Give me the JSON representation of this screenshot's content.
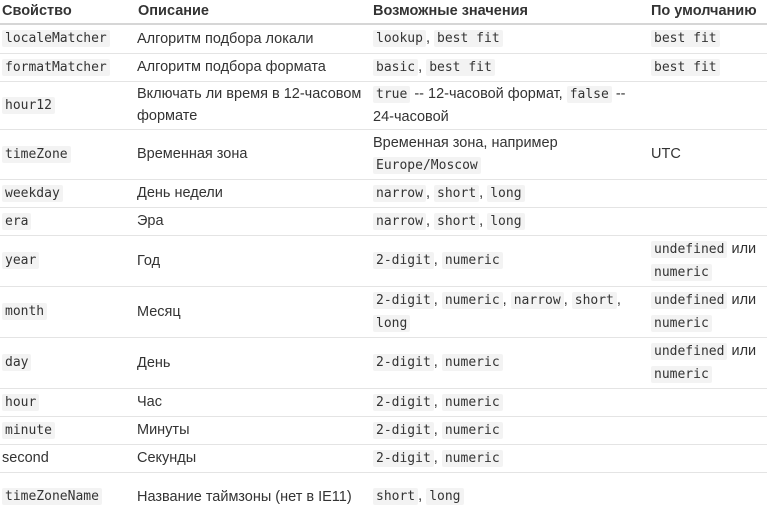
{
  "headers": [
    "Свойство",
    "Описание",
    "Возможные значения",
    "По умолчанию"
  ],
  "rows": [
    {
      "prop": "localeMatcher",
      "code": true,
      "h": 29,
      "desc": "Алгоритм подбора локали",
      "values": [
        {
          "t": "lookup",
          "c": true
        },
        {
          "t": ", ",
          "c": false
        },
        {
          "t": "best fit",
          "c": true
        }
      ],
      "default": [
        {
          "t": "best fit",
          "c": true
        }
      ]
    },
    {
      "prop": "formatMatcher",
      "code": true,
      "h": 28,
      "desc": "Алгоритм подбора формата",
      "values": [
        {
          "t": "basic",
          "c": true
        },
        {
          "t": ", ",
          "c": false
        },
        {
          "t": "best fit",
          "c": true
        }
      ],
      "default": [
        {
          "t": "best fit",
          "c": true
        }
      ]
    },
    {
      "prop": "hour12",
      "code": true,
      "h": 48,
      "desc": "Включать ли время в 12-часовом формате",
      "values": [
        {
          "t": "true",
          "c": true
        },
        {
          "t": " -- 12-часовой формат, ",
          "c": false
        },
        {
          "t": "false",
          "c": true
        },
        {
          "t": " -- 24-часовой",
          "c": false
        }
      ],
      "default": []
    },
    {
      "prop": "timeZone",
      "code": true,
      "h": 50,
      "desc": "Временная зона",
      "values": [
        {
          "t": "Временная зона, например ",
          "c": false
        },
        {
          "t": "Europe/Moscow",
          "c": true
        }
      ],
      "default": [
        {
          "t": "UTC",
          "c": false
        }
      ]
    },
    {
      "prop": "weekday",
      "code": true,
      "h": 28,
      "desc": "День недели",
      "values": [
        {
          "t": "narrow",
          "c": true
        },
        {
          "t": ", ",
          "c": false
        },
        {
          "t": "short",
          "c": true
        },
        {
          "t": ", ",
          "c": false
        },
        {
          "t": "long",
          "c": true
        }
      ],
      "default": []
    },
    {
      "prop": "era",
      "code": true,
      "h": 28,
      "desc": "Эра",
      "values": [
        {
          "t": "narrow",
          "c": true
        },
        {
          "t": ", ",
          "c": false
        },
        {
          "t": "short",
          "c": true
        },
        {
          "t": ", ",
          "c": false
        },
        {
          "t": "long",
          "c": true
        }
      ],
      "default": []
    },
    {
      "prop": "year",
      "code": true,
      "h": 51,
      "desc": "Год",
      "values": [
        {
          "t": "2-digit",
          "c": true
        },
        {
          "t": ", ",
          "c": false
        },
        {
          "t": "numeric",
          "c": true
        }
      ],
      "default": [
        {
          "t": "undefined",
          "c": true
        },
        {
          "t": " или ",
          "c": false
        },
        {
          "t": "numeric",
          "c": true
        }
      ]
    },
    {
      "prop": "month",
      "code": true,
      "h": 51,
      "desc": "Месяц",
      "values": [
        {
          "t": "2-digit",
          "c": true
        },
        {
          "t": ", ",
          "c": false
        },
        {
          "t": "numeric",
          "c": true
        },
        {
          "t": ", ",
          "c": false
        },
        {
          "t": "narrow",
          "c": true
        },
        {
          "t": ", ",
          "c": false
        },
        {
          "t": "short",
          "c": true
        },
        {
          "t": ", ",
          "c": false
        },
        {
          "t": "long",
          "c": true
        }
      ],
      "default": [
        {
          "t": "undefined",
          "c": true
        },
        {
          "t": " или ",
          "c": false
        },
        {
          "t": "numeric",
          "c": true
        }
      ]
    },
    {
      "prop": "day",
      "code": true,
      "h": 51,
      "desc": "День",
      "values": [
        {
          "t": "2-digit",
          "c": true
        },
        {
          "t": ", ",
          "c": false
        },
        {
          "t": "numeric",
          "c": true
        }
      ],
      "default": [
        {
          "t": "undefined",
          "c": true
        },
        {
          "t": " или ",
          "c": false
        },
        {
          "t": "numeric",
          "c": true
        }
      ]
    },
    {
      "prop": "hour",
      "code": true,
      "h": 28,
      "desc": "Час",
      "values": [
        {
          "t": "2-digit",
          "c": true
        },
        {
          "t": ", ",
          "c": false
        },
        {
          "t": "numeric",
          "c": true
        }
      ],
      "default": []
    },
    {
      "prop": "minute",
      "code": true,
      "h": 28,
      "desc": "Минуты",
      "values": [
        {
          "t": "2-digit",
          "c": true
        },
        {
          "t": ", ",
          "c": false
        },
        {
          "t": "numeric",
          "c": true
        }
      ],
      "default": []
    },
    {
      "prop": "second",
      "code": false,
      "h": 28,
      "desc": "Секунды",
      "values": [
        {
          "t": "2-digit",
          "c": true
        },
        {
          "t": ", ",
          "c": false
        },
        {
          "t": "numeric",
          "c": true
        }
      ],
      "default": []
    },
    {
      "prop": "timeZoneName",
      "code": true,
      "h": 49,
      "desc": "Название таймзоны (нет в IE11)",
      "values": [
        {
          "t": "short",
          "c": true
        },
        {
          "t": ", ",
          "c": false
        },
        {
          "t": "long",
          "c": true
        }
      ],
      "default": []
    }
  ]
}
